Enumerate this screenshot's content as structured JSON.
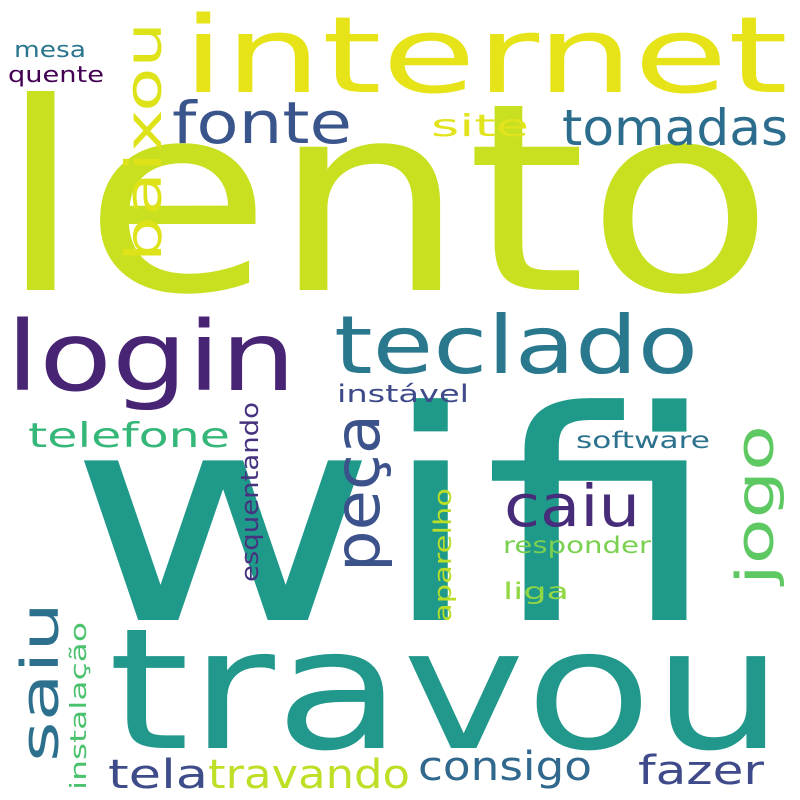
{
  "background": "#ffffff",
  "words": [
    {
      "text": "lento",
      "color": "#c8e020"
    },
    {
      "text": "wifi",
      "color": "#1f9a8a"
    },
    {
      "text": "travou",
      "color": "#21988b"
    },
    {
      "text": "internet",
      "color": "#e6e419"
    },
    {
      "text": "login",
      "color": "#482475"
    },
    {
      "text": "teclado",
      "color": "#2a788e"
    },
    {
      "text": "fonte",
      "color": "#3a548c"
    },
    {
      "text": "tomadas",
      "color": "#2c6d8e"
    },
    {
      "text": "baixou",
      "color": "#dde318"
    },
    {
      "text": "site",
      "color": "#e1e41d"
    },
    {
      "text": "peça",
      "color": "#3b528b"
    },
    {
      "text": "caiu",
      "color": "#472c7a"
    },
    {
      "text": "jogo",
      "color": "#5ec962"
    },
    {
      "text": "telefone",
      "color": "#35b779"
    },
    {
      "text": "saiu",
      "color": "#2d708e"
    },
    {
      "text": "consigo",
      "color": "#31688e"
    },
    {
      "text": "fazer",
      "color": "#3e4a89"
    },
    {
      "text": "tela",
      "color": "#3e4c8a"
    },
    {
      "text": "travando",
      "color": "#bddf26"
    },
    {
      "text": "instável",
      "color": "#3e4a89"
    },
    {
      "text": "software",
      "color": "#2c728e"
    },
    {
      "text": "esquentando",
      "color": "#46327e"
    },
    {
      "text": "aparelho",
      "color": "#b8de29"
    },
    {
      "text": "responder",
      "color": "#7ad151"
    },
    {
      "text": "liga",
      "color": "#90d743"
    },
    {
      "text": "instalação",
      "color": "#4ac16d"
    },
    {
      "text": "mesa",
      "color": "#2a768e"
    },
    {
      "text": "quente",
      "color": "#440154"
    }
  ]
}
